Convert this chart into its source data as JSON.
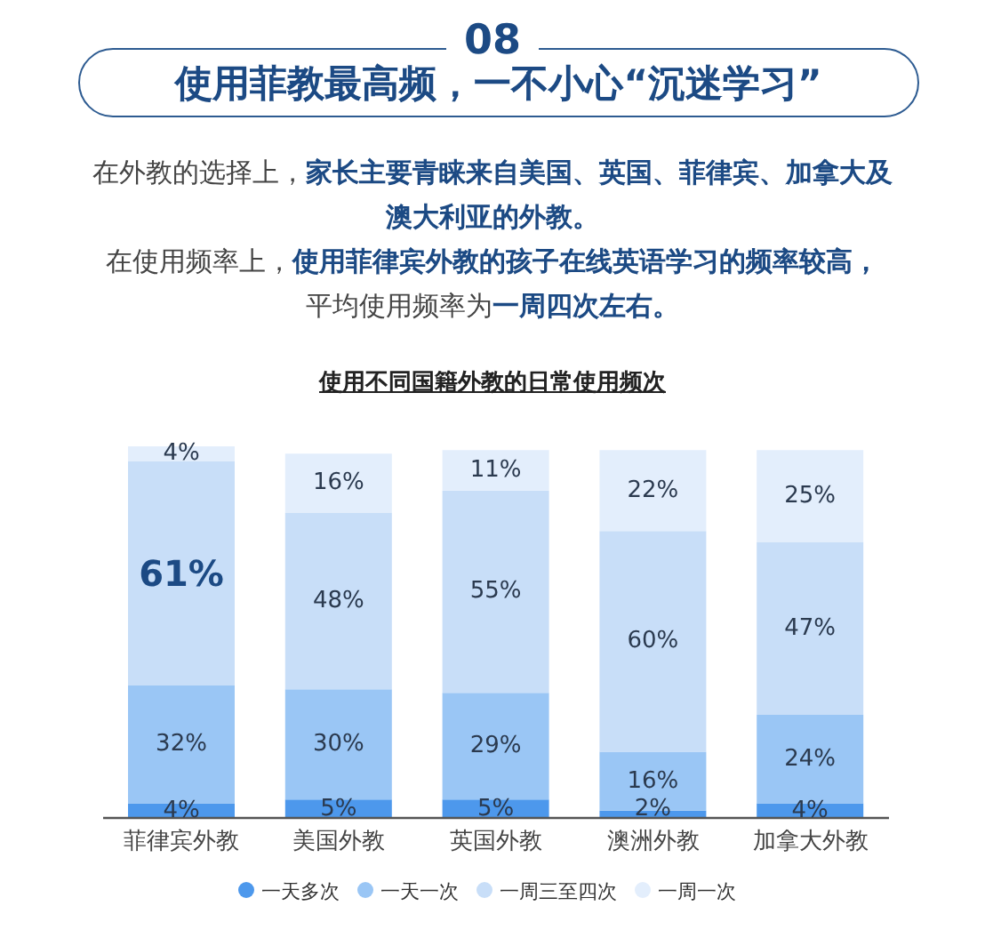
{
  "chart_data": {
    "type": "bar",
    "title": "使用菲教最高频，一不小心“沉迷学习”",
    "subtitle": "使用不同国籍外教的日常使用频次",
    "annotations": [
      "08",
      "在外教的选择上，",
      "家长主要青睐来自美国、英国、菲律宾、加拿大及澳大利亚的外教。",
      "在使用频率上，",
      "使用菲律宾外教的孩子在线英语学习的频率较高，",
      "平均使用频率为",
      "一周四次左右。"
    ],
    "categories": [
      "菲律宾外教",
      "美国外教",
      "英国外教",
      "澳洲外教",
      "加拿大外教"
    ],
    "series": [
      {
        "name": "一天多次",
        "color": "#4d98ec",
        "values": [
          4,
          5,
          5,
          2,
          4
        ],
        "value_labels": [
          "4%",
          "5%",
          "5%",
          "2%",
          "4%"
        ]
      },
      {
        "name": "一天一次",
        "color": "#9ac6f5",
        "values": [
          32,
          30,
          29,
          16,
          24
        ],
        "value_labels": [
          "32%",
          "30%",
          "29%",
          "16%",
          "24%"
        ]
      },
      {
        "name": "一周三至四次",
        "color": "#c8def8",
        "values": [
          61,
          48,
          55,
          60,
          47
        ],
        "value_labels": [
          "61%",
          "48%",
          "55%",
          "60%",
          "47%"
        ]
      },
      {
        "name": "一周一次",
        "color": "#e3eefc",
        "values": [
          4,
          16,
          11,
          22,
          25
        ],
        "value_labels": [
          "4%",
          "16%",
          "11%",
          "22%",
          "25%"
        ]
      }
    ],
    "stacked": true,
    "ylim": [
      0,
      101
    ],
    "tick_labels": "x",
    "legend": "bottom"
  }
}
